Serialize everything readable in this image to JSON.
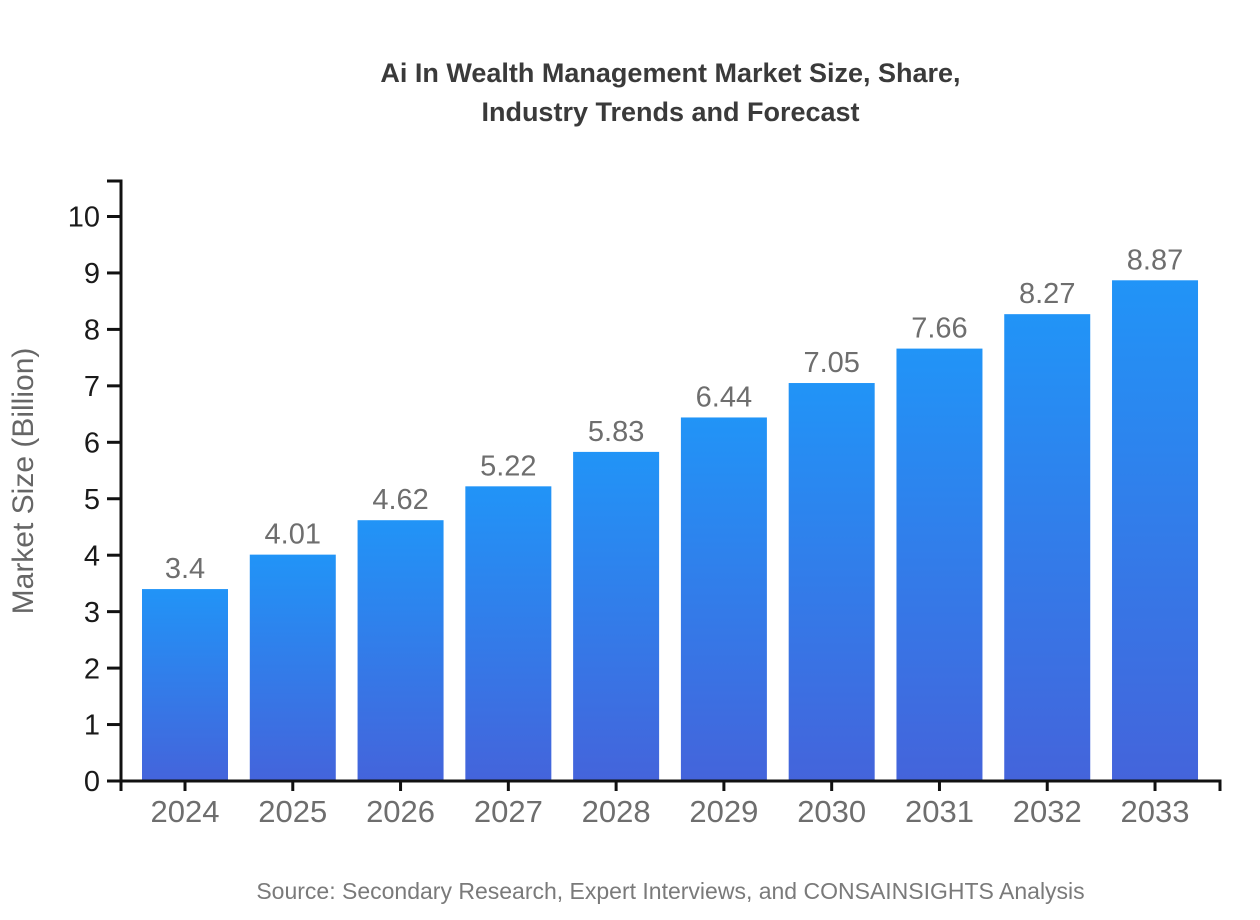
{
  "chart": {
    "title_lines": [
      "Ai In Wealth Management Market Size, Share,",
      "Industry Trends and Forecast"
    ],
    "source": "Source: Secondary Research, Expert Interviews, and CONSAINSIGHTS Analysis"
  },
  "chart_data": {
    "type": "bar",
    "title": "Ai In Wealth Management Market Size, Share, Industry Trends and Forecast",
    "categories": [
      "2024",
      "2025",
      "2026",
      "2027",
      "2028",
      "2029",
      "2030",
      "2031",
      "2032",
      "2033"
    ],
    "values": [
      3.4,
      4.01,
      4.62,
      5.22,
      5.83,
      6.44,
      7.05,
      7.66,
      8.27,
      8.87
    ],
    "value_labels": [
      "3.4",
      "4.01",
      "4.62",
      "5.22",
      "5.83",
      "6.44",
      "7.05",
      "7.66",
      "8.27",
      "8.87"
    ],
    "xlabel": "",
    "ylabel": "Market Size (Billion)",
    "ylim": [
      0,
      10
    ],
    "yticks": [
      0,
      1,
      2,
      3,
      4,
      5,
      6,
      7,
      8,
      9,
      10
    ],
    "grid": false,
    "legend": false,
    "source": "Source: Secondary Research, Expert Interviews, and CONSAINSIGHTS Analysis",
    "colors": {
      "bar_gradient_top": "#2194f7",
      "bar_gradient_bottom": "#4464db",
      "axis": "#111111",
      "y_tick_label": "#1a1a1a",
      "value_label": "#6e6e6e",
      "category_label": "#6e6e6e",
      "ylabel": "#666666",
      "title": "#3a3a3a",
      "source": "#7a7a7a"
    }
  }
}
